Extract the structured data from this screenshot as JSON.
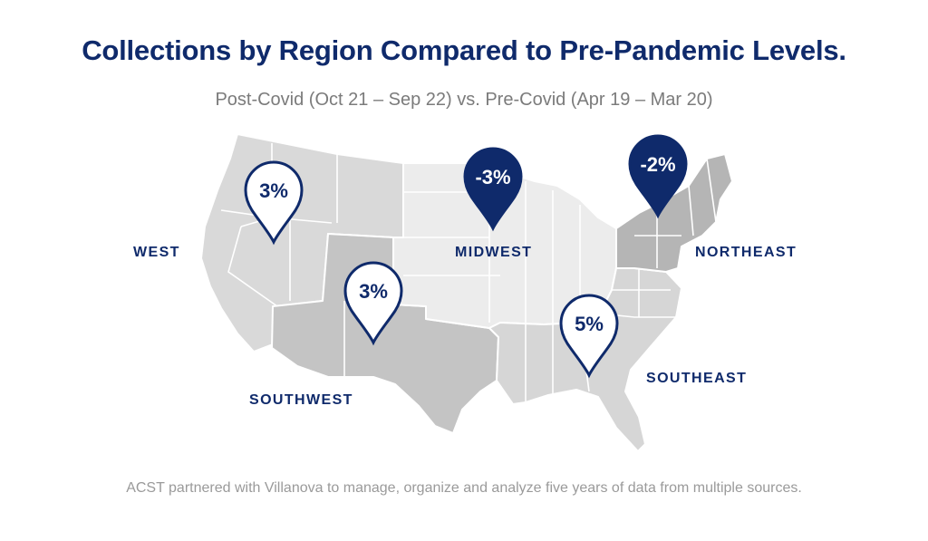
{
  "title": "Collections by Region Compared to Pre-Pandemic Levels.",
  "subtitle": "Post-Covid (Oct 21 – Sep 22) vs. Pre-Covid (Apr 19 – Mar 20)",
  "footer": "ACST partnered with Villanova to manage, organize and analyze five years of data from multiple sources.",
  "colors": {
    "navy": "#0f2a6b",
    "west_fill": "#d9d9d9",
    "southwest_fill": "#c4c4c4",
    "midwest_fill": "#ececec",
    "southeast_fill": "#d6d6d6",
    "northeast_fill": "#b5b5b5",
    "state_borders": "#ffffff"
  },
  "regions": [
    {
      "name": "WEST",
      "value": "3%",
      "pin_style": "outline"
    },
    {
      "name": "SOUTHWEST",
      "value": "3%",
      "pin_style": "outline"
    },
    {
      "name": "MIDWEST",
      "value": "-3%",
      "pin_style": "filled"
    },
    {
      "name": "NORTHEAST",
      "value": "-2%",
      "pin_style": "filled"
    },
    {
      "name": "SOUTHEAST",
      "value": "5%",
      "pin_style": "outline"
    }
  ]
}
